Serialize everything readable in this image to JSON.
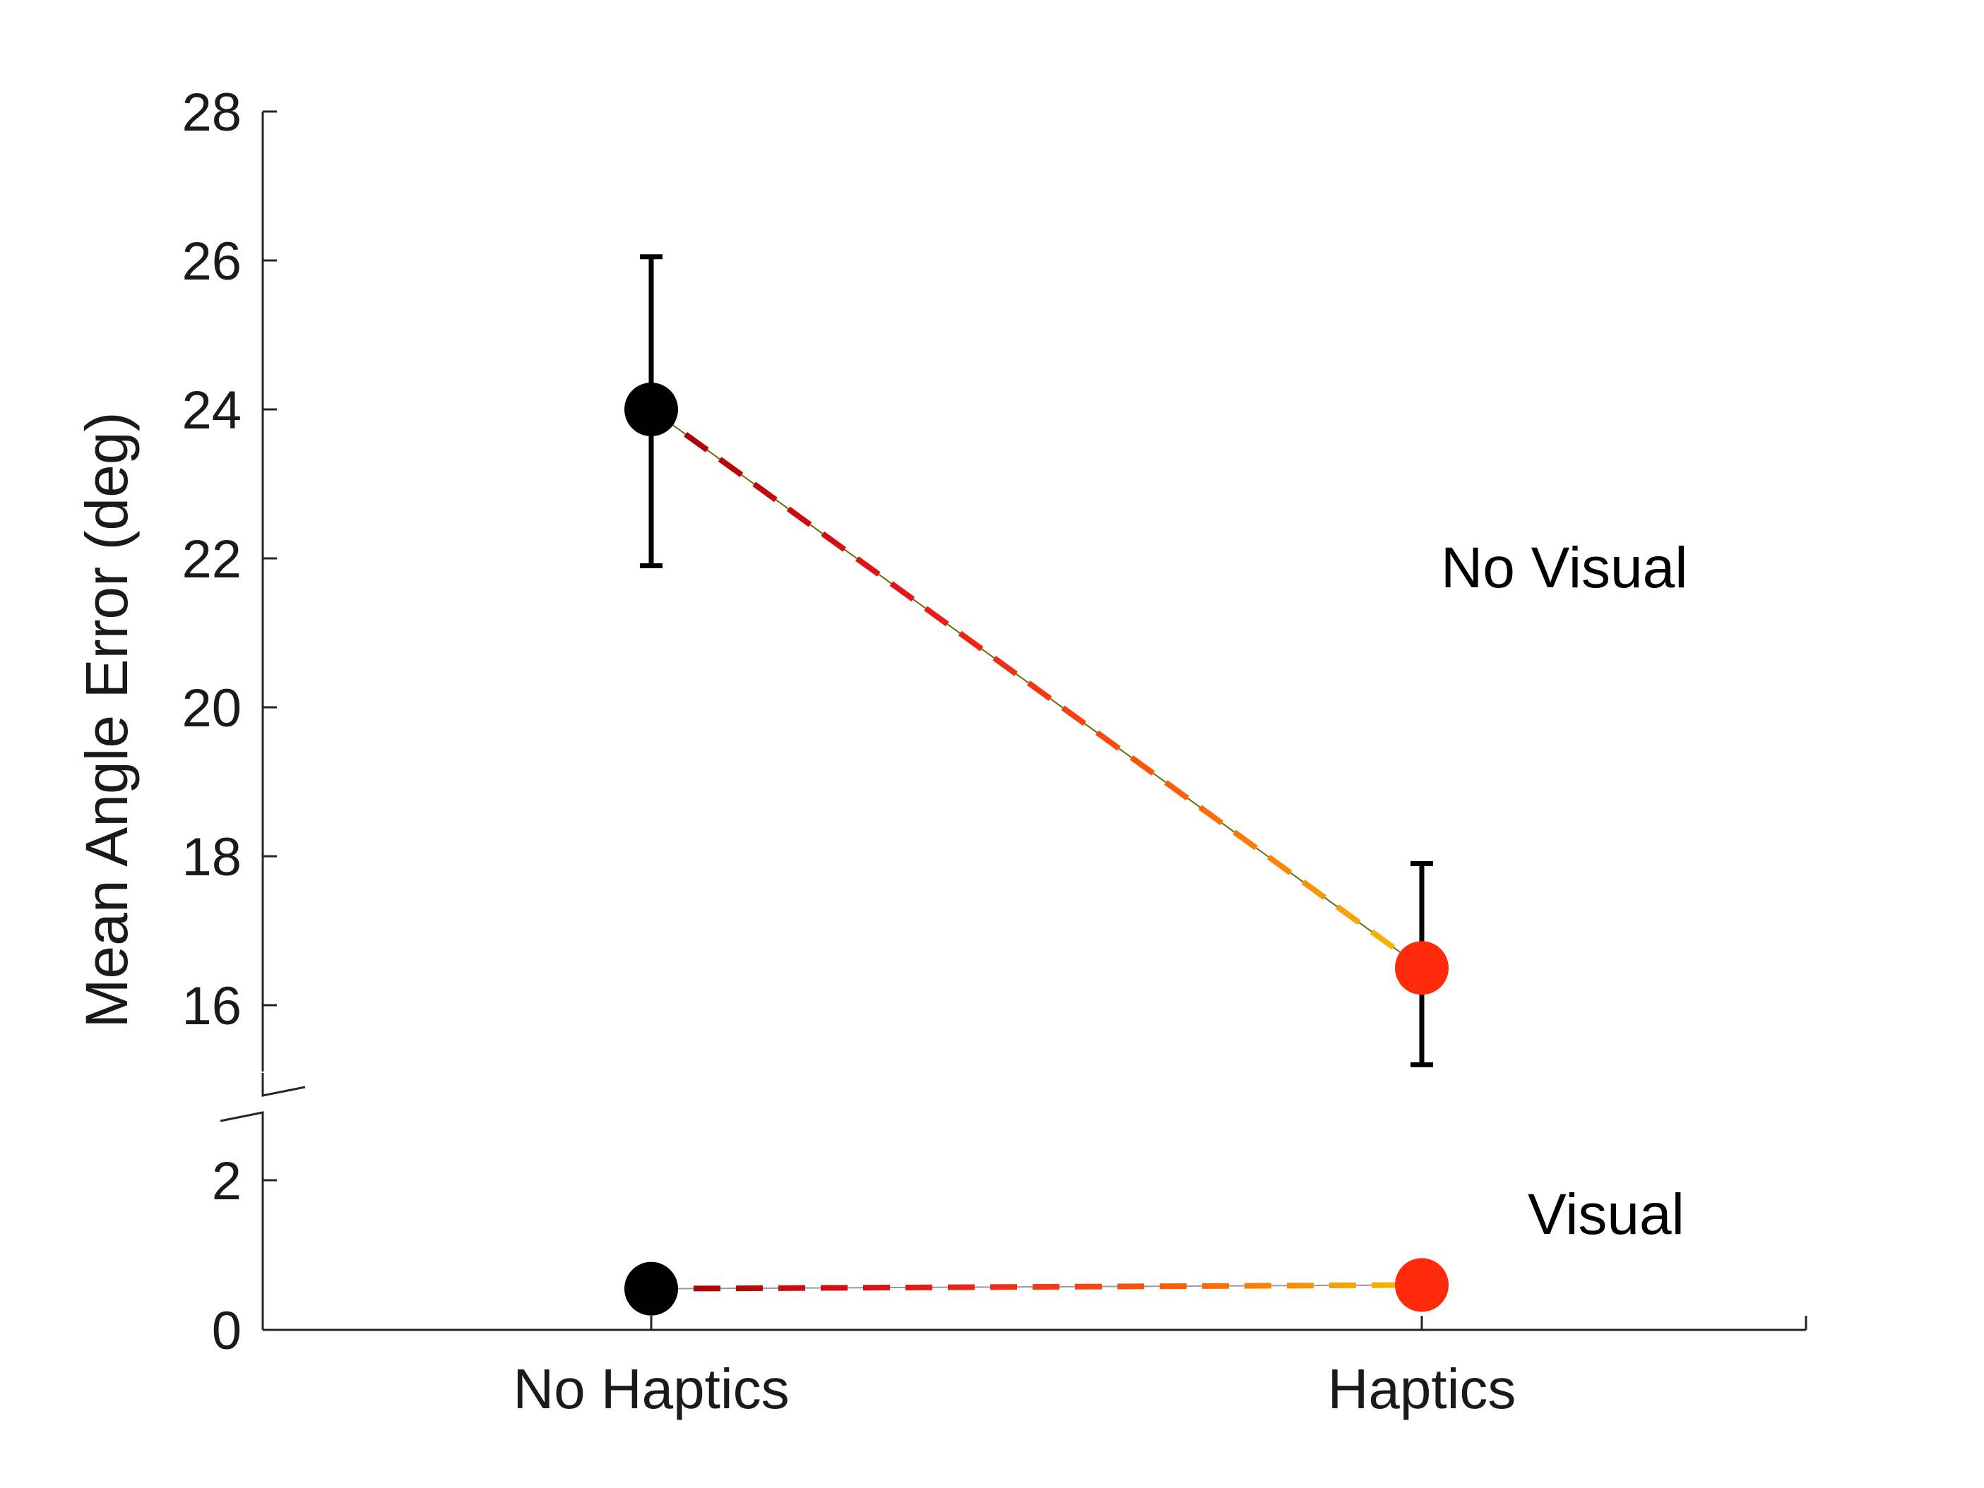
{
  "chart_data": {
    "type": "line",
    "ylabel": "Mean Angle Error (deg)",
    "categories": [
      "No Haptics",
      "Haptics"
    ],
    "y_axis_break": true,
    "y_ticks_lower": [
      "0",
      "2"
    ],
    "y_ticks_upper": [
      "16",
      "18",
      "20",
      "22",
      "24",
      "26",
      "28"
    ],
    "ylim_lower": [
      0,
      3
    ],
    "ylim_upper": [
      15,
      28
    ],
    "series": [
      {
        "name": "No Visual",
        "values": [
          24.0,
          16.5
        ],
        "error_low": [
          21.9,
          15.2
        ],
        "error_high": [
          26.05,
          17.9
        ]
      },
      {
        "name": "Visual",
        "values": [
          0.55,
          0.6
        ]
      }
    ],
    "marker_colors": [
      "#000000",
      "#ff2a0a"
    ],
    "line_gradient": [
      "#a00000",
      "#e8141a",
      "#ff5a0a",
      "#f4c000"
    ],
    "line_style": "dashed",
    "grid": false
  }
}
